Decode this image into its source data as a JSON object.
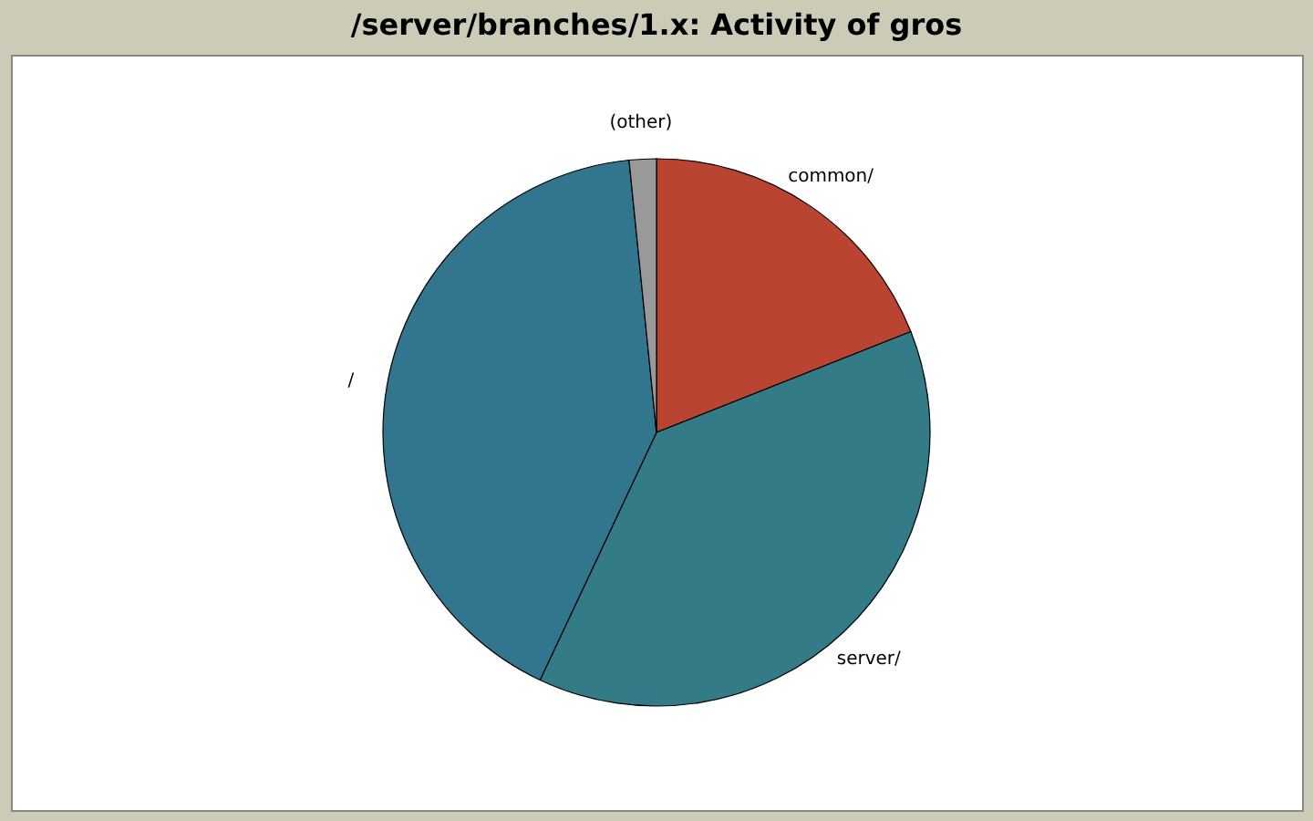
{
  "chart_data": {
    "type": "pie",
    "title": "/server/branches/1.x: Activity of gros",
    "categories": [
      "common/",
      "server/",
      "/",
      "(other)"
    ],
    "values": [
      19,
      38,
      41.4,
      1.6
    ],
    "colors": [
      "#b94431",
      "#337b86",
      "#32758f",
      "#999999"
    ]
  }
}
